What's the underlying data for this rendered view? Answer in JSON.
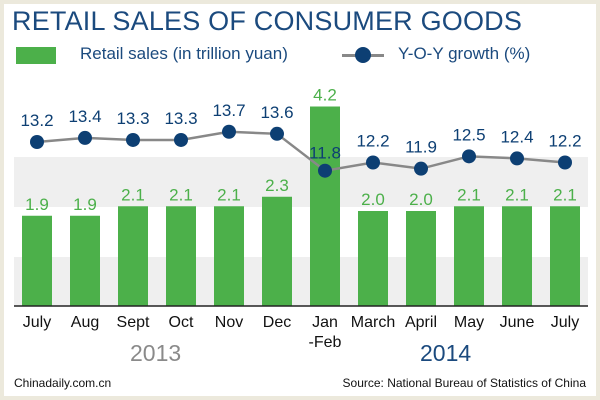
{
  "chart_data": {
    "type": "bar+line",
    "title": "RETAIL SALES OF CONSUMER GOODS",
    "categories": [
      "July",
      "Aug",
      "Sept",
      "Oct",
      "Nov",
      "Dec",
      "Jan\n-Feb",
      "March",
      "April",
      "May",
      "June",
      "July"
    ],
    "category_lines": [
      [
        "July"
      ],
      [
        "Aug"
      ],
      [
        "Sept"
      ],
      [
        "Oct"
      ],
      [
        "Nov"
      ],
      [
        "Dec"
      ],
      [
        "Jan",
        "-Feb"
      ],
      [
        "March"
      ],
      [
        "April"
      ],
      [
        "May"
      ],
      [
        "June"
      ],
      [
        "July"
      ]
    ],
    "series": [
      {
        "name": "Retail sales (in trillion yuan)",
        "type": "bar",
        "color": "#4cb04a",
        "values": [
          1.9,
          1.9,
          2.1,
          2.1,
          2.1,
          2.3,
          4.2,
          2.0,
          2.0,
          2.1,
          2.1,
          2.1
        ],
        "labels": [
          "1.9",
          "1.9",
          "2.1",
          "2.1",
          "2.1",
          "2.3",
          "4.2",
          "2.0",
          "2.0",
          "2.1",
          "2.1",
          "2.1"
        ]
      },
      {
        "name": "Y-O-Y growth (%)",
        "type": "line",
        "color": "#0d3f73",
        "line_color": "#888888",
        "values": [
          13.2,
          13.4,
          13.3,
          13.3,
          13.7,
          13.6,
          11.8,
          12.2,
          11.9,
          12.5,
          12.4,
          12.2
        ],
        "labels": [
          "13.2",
          "13.4",
          "13.3",
          "13.3",
          "13.7",
          "13.6",
          "11.8",
          "12.2",
          "11.9",
          "12.5",
          "12.4",
          "12.2"
        ]
      }
    ],
    "year_groups": [
      {
        "label": "2013",
        "color": "#8a8a8a"
      },
      {
        "label": "2014",
        "color": "#1b4a7e"
      }
    ],
    "grid": "alternating bands",
    "legend": "top"
  },
  "footer": {
    "left": "Chinadaily.com.cn",
    "right": "Source: National Bureau of Statistics of China"
  }
}
